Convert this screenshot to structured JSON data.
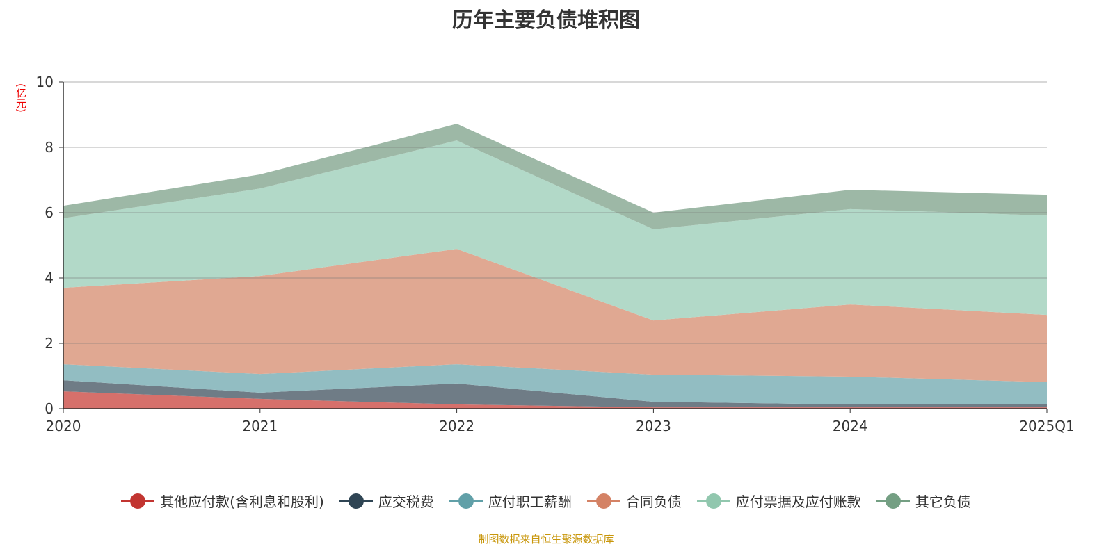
{
  "chart_data": {
    "type": "area",
    "stacked": true,
    "title": "历年主要负债堆积图",
    "ylabel": "(亿元)",
    "ylim": [
      0,
      10
    ],
    "yticks": [
      0,
      2,
      4,
      6,
      8,
      10
    ],
    "categories": [
      "2020",
      "2021",
      "2022",
      "2023",
      "2024",
      "2025Q1"
    ],
    "series": [
      {
        "name": "其他应付款(含利息和股利)",
        "color": "#c23531",
        "fill": "#d6706b",
        "values": [
          0.53,
          0.3,
          0.13,
          0.04,
          0.04,
          0.04
        ]
      },
      {
        "name": "应交税费",
        "color": "#2f4554",
        "fill": "#6f7c86",
        "values": [
          0.34,
          0.19,
          0.64,
          0.17,
          0.09,
          0.11
        ]
      },
      {
        "name": "应付职工薪酬",
        "color": "#61a0a8",
        "fill": "#92bdc2",
        "values": [
          0.49,
          0.57,
          0.59,
          0.83,
          0.85,
          0.66
        ]
      },
      {
        "name": "合同负债",
        "color": "#d48265",
        "fill": "#e0a892",
        "values": [
          2.34,
          3.0,
          3.53,
          1.66,
          2.21,
          2.06
        ]
      },
      {
        "name": "应付票据及应付账款",
        "color": "#91c7ae",
        "fill": "#b2d9c8",
        "values": [
          2.13,
          2.68,
          3.32,
          2.79,
          2.92,
          3.04
        ]
      },
      {
        "name": "其它负债",
        "color": "#749f83",
        "fill": "#9db8a6",
        "values": [
          0.38,
          0.43,
          0.51,
          0.51,
          0.59,
          0.64
        ]
      }
    ],
    "legend_position": "bottom",
    "grid": true
  },
  "source": "制图数据来自恒生聚源数据库"
}
